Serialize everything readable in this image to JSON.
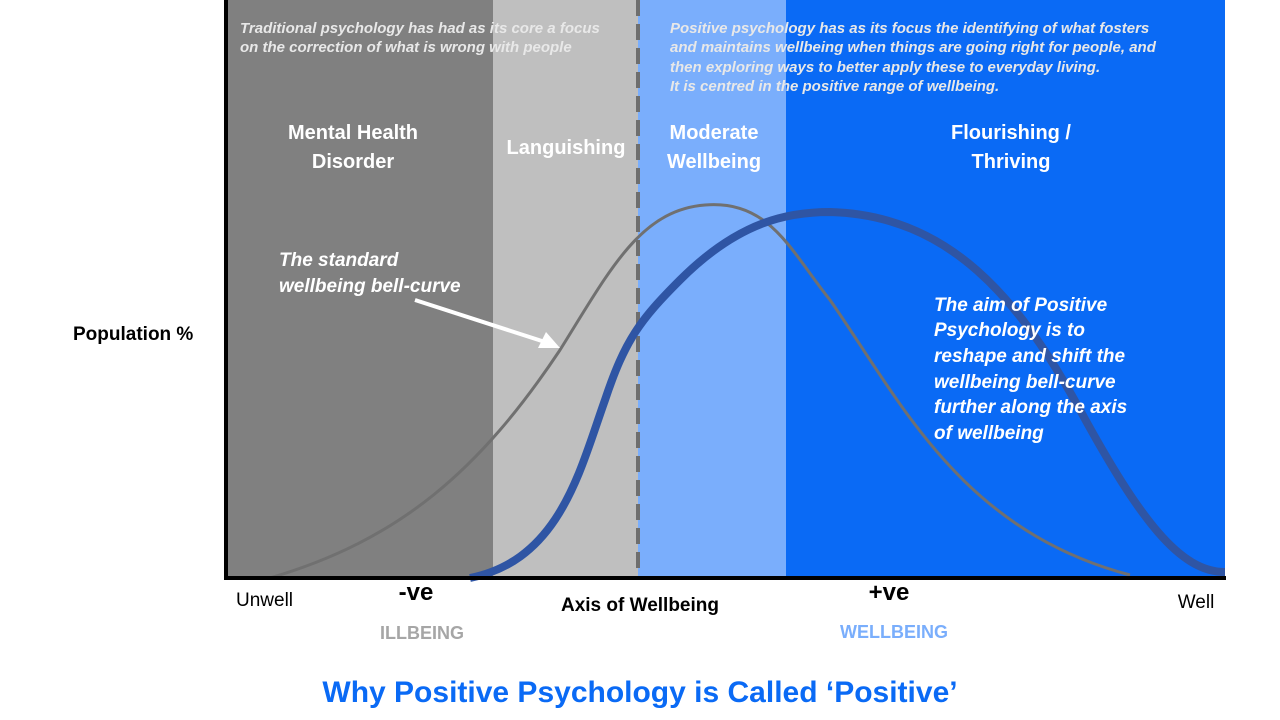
{
  "notes": {
    "traditional": [
      "Traditional psychology has had as its core  a focus",
      "on the correction of what is wrong with people"
    ],
    "positive": [
      "Positive psychology has as its focus the identifying of what fosters",
      "and maintains wellbeing when things are going right for people, and",
      "then exploring ways to better apply these to everyday living.",
      "It is centred in the positive range of wellbeing."
    ]
  },
  "zones": [
    {
      "label": [
        "Mental Health",
        "Disorder"
      ]
    },
    {
      "label": [
        "Languishing"
      ]
    },
    {
      "label": [
        "Moderate",
        "Wellbeing"
      ]
    },
    {
      "label": [
        "Flourishing /",
        "Thriving"
      ]
    }
  ],
  "annotations": {
    "standard_curve": [
      "The standard",
      "wellbeing bell-curve"
    ],
    "aim": [
      "The aim of Positive",
      "Psychology is to",
      "reshape and shift the",
      "wellbeing bell-curve",
      "further along the axis",
      "of wellbeing"
    ]
  },
  "axes": {
    "y_label": "Population %",
    "x_label": "Axis of Wellbeing",
    "x_left": "Unwell",
    "x_right": "Well",
    "negative": "-ve",
    "positive": "+ve",
    "illbeing": "ILLBEING",
    "wellbeing": "WELLBEING"
  },
  "title": "Why Positive Psychology is Called ‘Positive’"
}
